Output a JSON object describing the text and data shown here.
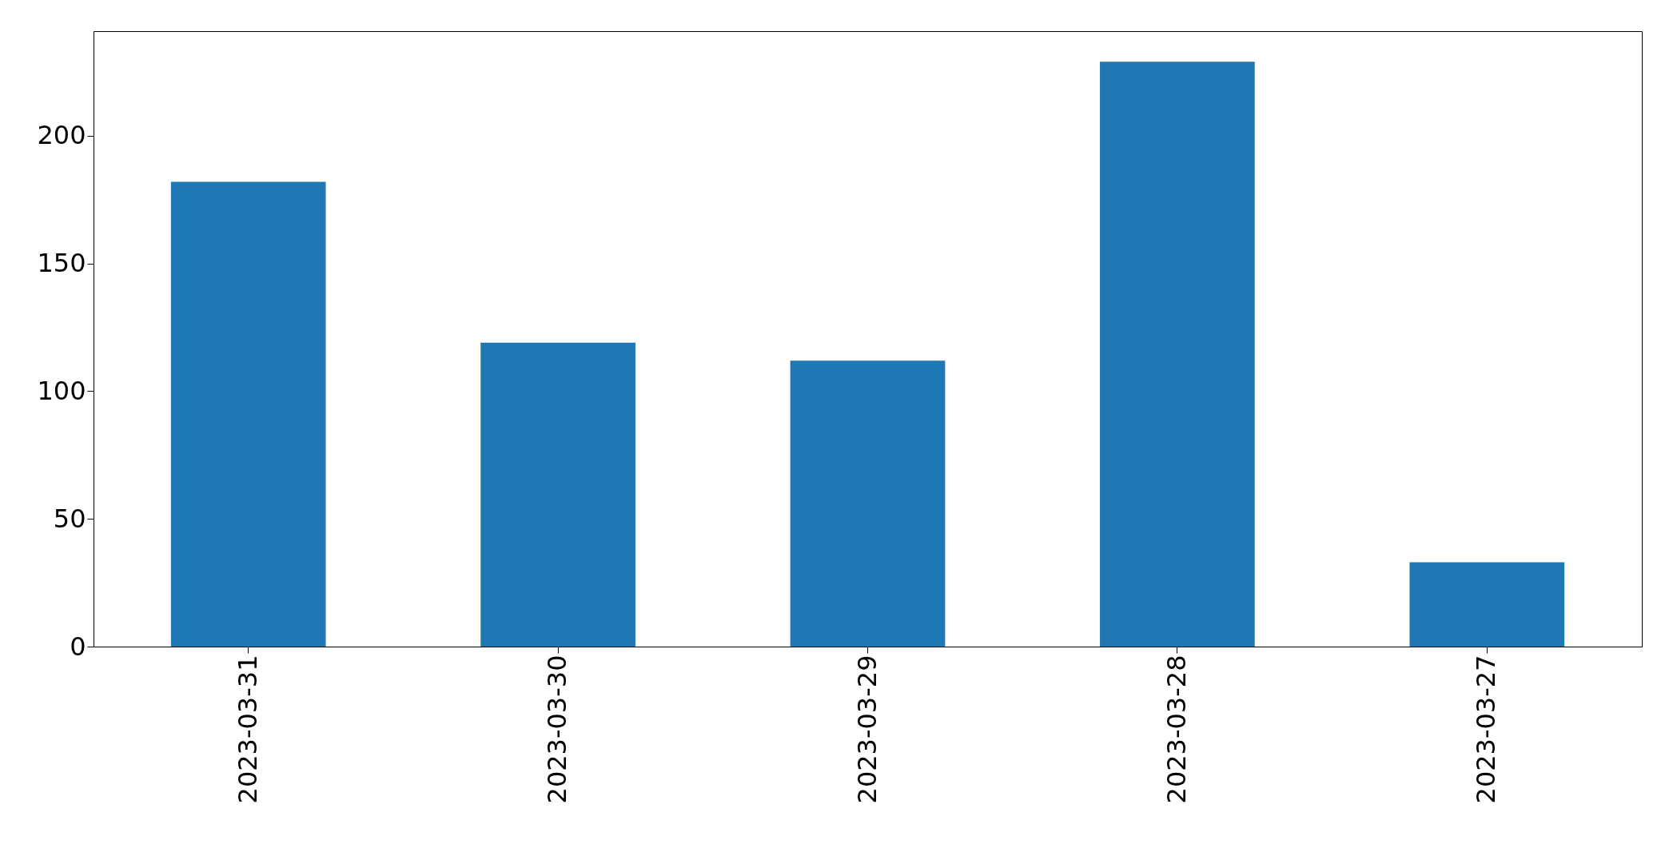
{
  "chart_data": {
    "type": "bar",
    "categories": [
      "2023-03-31",
      "2023-03-30",
      "2023-03-29",
      "2023-03-28",
      "2023-03-27"
    ],
    "values": [
      182,
      119,
      112,
      229,
      33
    ],
    "color": "#1f77b4",
    "ylim": [
      0,
      241
    ],
    "yticks": [
      0,
      50,
      100,
      150,
      200
    ],
    "grid": false
  }
}
